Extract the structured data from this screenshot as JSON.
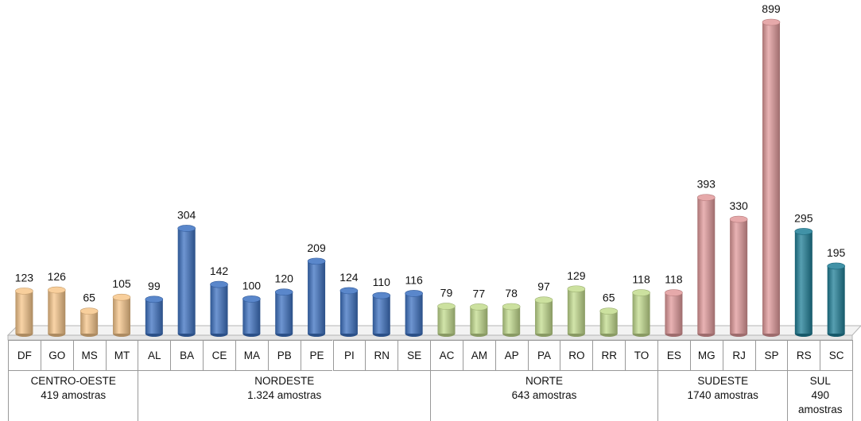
{
  "chart_data": {
    "type": "bar",
    "series": [
      {
        "name": "CENTRO-OESTE",
        "subtitle": "419 amostras",
        "color": "#f7c68a",
        "categories": [
          "DF",
          "GO",
          "MS",
          "MT"
        ],
        "values": [
          123,
          126,
          65,
          105
        ]
      },
      {
        "name": "NORDESTE",
        "subtitle": "1.324 amostras",
        "color": "#3d72c2",
        "categories": [
          "AL",
          "BA",
          "CE",
          "MA",
          "PB",
          "PE",
          "PI",
          "RN",
          "SE"
        ],
        "values": [
          99,
          304,
          142,
          100,
          120,
          209,
          124,
          110,
          116
        ]
      },
      {
        "name": "NORTE",
        "subtitle": "643 amostras",
        "color": "#c3dc8e",
        "categories": [
          "AC",
          "AM",
          "AP",
          "PA",
          "RO",
          "RR",
          "TO"
        ],
        "values": [
          79,
          77,
          78,
          97,
          129,
          65,
          118
        ]
      },
      {
        "name": "SUDESTE",
        "subtitle": "1740 amostras",
        "color": "#e29a9b",
        "categories": [
          "ES",
          "MG",
          "RJ",
          "SP"
        ],
        "values": [
          118,
          393,
          330,
          899
        ]
      },
      {
        "name": "SUL",
        "subtitle": "490 amostras",
        "color": "#1f7f97",
        "categories": [
          "RS",
          "SC"
        ],
        "values": [
          295,
          195
        ]
      }
    ]
  }
}
